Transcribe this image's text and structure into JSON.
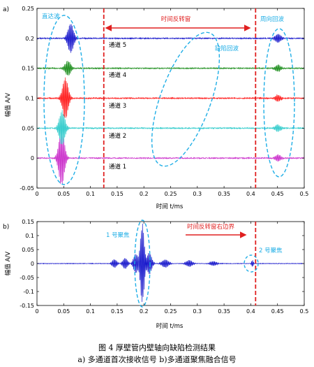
{
  "chart_data": [
    {
      "type": "line",
      "panel_tag": "a)",
      "xlabel": "时间 t/ms",
      "ylabel": "幅值 A/V",
      "xlim": [
        0,
        0.5
      ],
      "ylim": [
        -0.05,
        0.25
      ],
      "xticks": [
        "0",
        "0.05",
        "0.1",
        "0.15",
        "0.2",
        "0.25",
        "0.3",
        "0.35",
        "0.4",
        "0.45",
        "0.5"
      ],
      "yticks": [
        "-0.05",
        "0",
        "0.05",
        "0.1",
        "0.15",
        "0.2",
        "0.25"
      ],
      "series": [
        {
          "name": "通道 1",
          "color": "#cc33cc",
          "offset": 0.0,
          "bursts": [
            {
              "center": 0.046,
              "width": 0.007,
              "amp": 0.048
            },
            {
              "center": 0.451,
              "width": 0.007,
              "amp": 0.006
            }
          ]
        },
        {
          "name": "通道 2",
          "color": "#33cccc",
          "offset": 0.05,
          "bursts": [
            {
              "center": 0.047,
              "width": 0.007,
              "amp": 0.03
            },
            {
              "center": 0.451,
              "width": 0.007,
              "amp": 0.006
            }
          ]
        },
        {
          "name": "通道 3",
          "color": "#ff2020",
          "offset": 0.1,
          "bursts": [
            {
              "center": 0.053,
              "width": 0.007,
              "amp": 0.035
            },
            {
              "center": 0.451,
              "width": 0.007,
              "amp": 0.006
            }
          ]
        },
        {
          "name": "通道 4",
          "color": "#1f8f1f",
          "offset": 0.15,
          "bursts": [
            {
              "center": 0.058,
              "width": 0.007,
              "amp": 0.013
            },
            {
              "center": 0.451,
              "width": 0.007,
              "amp": 0.006
            }
          ]
        },
        {
          "name": "通道 5",
          "color": "#1a1acc",
          "offset": 0.2,
          "bursts": [
            {
              "center": 0.063,
              "width": 0.007,
              "amp": 0.025
            },
            {
              "center": 0.451,
              "width": 0.007,
              "amp": 0.008
            }
          ]
        }
      ],
      "vlines": [
        0.125,
        0.409
      ],
      "annotations": {
        "direct_wave": "直达波",
        "time_reverse_window": "时间反转窗",
        "defect_echo": "缺陷回波",
        "circumferential_echo": "周向回波"
      }
    },
    {
      "type": "line",
      "panel_tag": "b)",
      "xlabel": "时间 t/ms",
      "ylabel": "幅值 A/V",
      "xlim": [
        0,
        0.5
      ],
      "ylim": [
        -0.15,
        0.15
      ],
      "xticks": [
        "0",
        "0.05",
        "0.1",
        "0.15",
        "0.2",
        "0.25",
        "0.3",
        "0.35",
        "0.4",
        "0.45",
        "0.5"
      ],
      "yticks": [
        "-0.15",
        "-0.1",
        "-0.05",
        "0",
        "0.05",
        "0.1",
        "0.15"
      ],
      "series": [
        {
          "color": "#1a1acc",
          "offset": 0.0,
          "bursts": [
            {
              "center": 0.197,
              "width": 0.005,
              "amp": 0.145
            },
            {
              "center": 0.185,
              "width": 0.006,
              "amp": 0.035
            },
            {
              "center": 0.21,
              "width": 0.006,
              "amp": 0.04
            },
            {
              "center": 0.145,
              "width": 0.006,
              "amp": 0.015
            },
            {
              "center": 0.165,
              "width": 0.006,
              "amp": 0.02
            },
            {
              "center": 0.24,
              "width": 0.008,
              "amp": 0.015
            },
            {
              "center": 0.285,
              "width": 0.008,
              "amp": 0.012
            },
            {
              "center": 0.33,
              "width": 0.008,
              "amp": 0.008
            },
            {
              "center": 0.403,
              "width": 0.0025,
              "amp": 0.012
            }
          ]
        }
      ],
      "vlines": [
        0.409
      ],
      "annotations": {
        "focus1": "1 号聚焦",
        "right_boundary": "时间反转窗右边界",
        "focus2": "2 号聚焦"
      }
    }
  ],
  "caption": {
    "title": "图 4 厚壁管内壁轴向缺陷检测结果",
    "subtitle": "a) 多通道首次接收信号 b)多通道聚焦融合信号"
  }
}
